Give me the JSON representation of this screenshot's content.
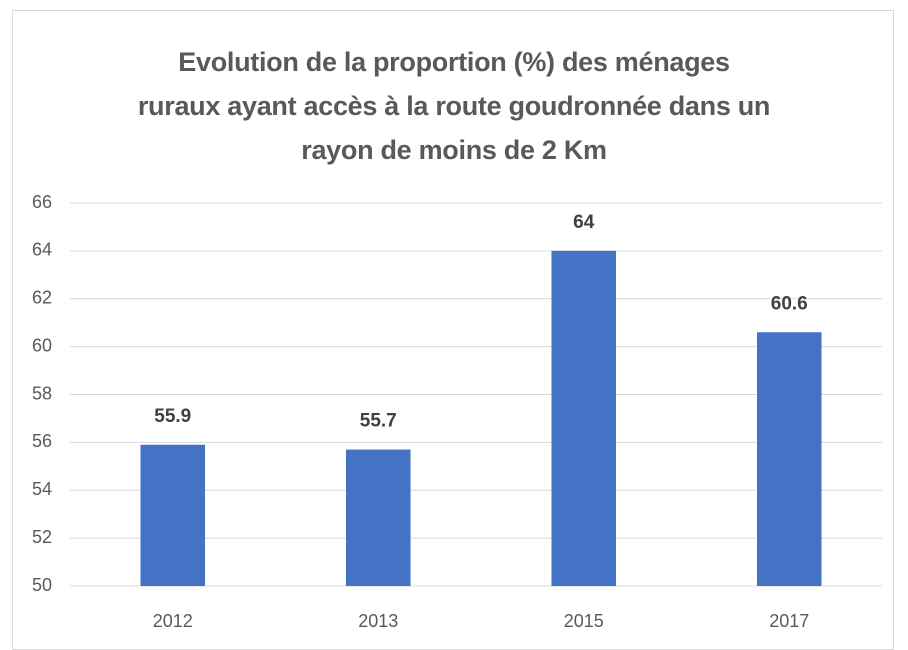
{
  "chart_data": {
    "type": "bar",
    "title": "Evolution de la proportion (%) des ménages ruraux ayant accès à la route goudronnée dans un rayon de moins de 2 Km",
    "categories": [
      "2012",
      "2013",
      "2015",
      "2017"
    ],
    "values": [
      55.9,
      55.7,
      64,
      60.6
    ],
    "color": "#4472c4",
    "ylim": [
      50,
      66
    ],
    "yticks": [
      50,
      52,
      54,
      56,
      58,
      60,
      62,
      64,
      66
    ],
    "grid": true
  }
}
